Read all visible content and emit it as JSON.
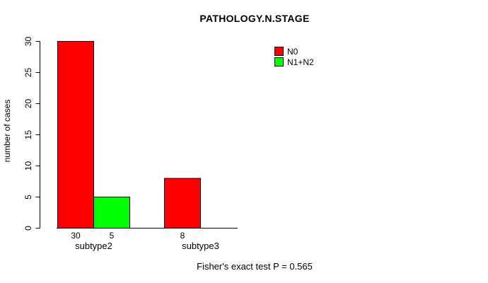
{
  "chart_data": {
    "type": "bar",
    "title": "PATHOLOGY.N.STAGE",
    "xlabel": "",
    "ylabel": "number of cases",
    "categories": [
      "subtype2",
      "subtype3"
    ],
    "series": [
      {
        "name": "N0",
        "color": "#ff0000",
        "values": [
          30,
          8
        ]
      },
      {
        "name": "N1+N2",
        "color": "#00ff00",
        "values": [
          5,
          0
        ]
      }
    ],
    "yticks": [
      0,
      5,
      10,
      15,
      20,
      25,
      30
    ],
    "ylim": [
      0,
      30
    ],
    "grid": false,
    "legend_position": "top-right",
    "bar_border_color": "#000000",
    "axis_color": "#000000",
    "background_color": "#ffffff",
    "annotation": "Fisher's exact test P = 0.565"
  }
}
